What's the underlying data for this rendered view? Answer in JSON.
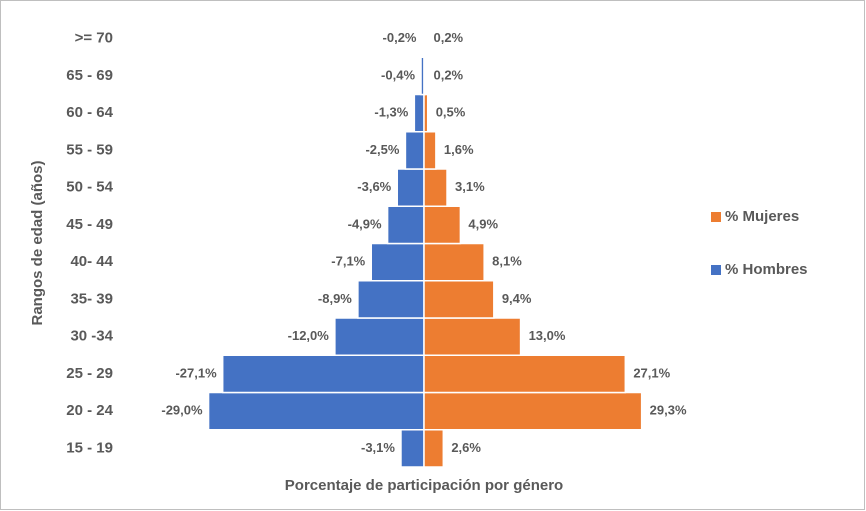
{
  "chart_data": {
    "type": "pyramid",
    "categories": [
      "15 - 19",
      "20 - 24",
      "25 - 29",
      "30 -34",
      "35- 39",
      "40- 44",
      "45 - 49",
      "50 - 54",
      "55 - 59",
      "60 - 64",
      "65 - 69",
      ">= 70"
    ],
    "series": [
      {
        "name": "% Hombres",
        "color": "#4472c4",
        "values": [
          -3.1,
          -29.0,
          -27.1,
          -12.0,
          -8.9,
          -7.1,
          -4.9,
          -3.6,
          -2.5,
          -1.3,
          -0.4,
          -0.2
        ],
        "value_labels": [
          "-3,1%",
          "-29,0%",
          "-27,1%",
          "-12,0%",
          "-8,9%",
          "-7,1%",
          "-4,9%",
          "-3,6%",
          "-2,5%",
          "-1,3%",
          "-0,4%",
          "-0,2%"
        ]
      },
      {
        "name": "% Mujeres",
        "color": "#ed7d31",
        "values": [
          2.6,
          29.3,
          27.1,
          13.0,
          9.4,
          8.1,
          4.9,
          3.1,
          1.6,
          0.5,
          0.2,
          0.2
        ],
        "value_labels": [
          "2,6%",
          "29,3%",
          "27,1%",
          "13,0%",
          "9,4%",
          "8,1%",
          "4,9%",
          "3,1%",
          "1,6%",
          "0,5%",
          "0,2%",
          "0,2%"
        ]
      }
    ],
    "xlim": [
      -35,
      35
    ],
    "x_label": "Porcentaje de participación por género",
    "y_label": "Rangos de edad (años)",
    "legend": "right"
  }
}
